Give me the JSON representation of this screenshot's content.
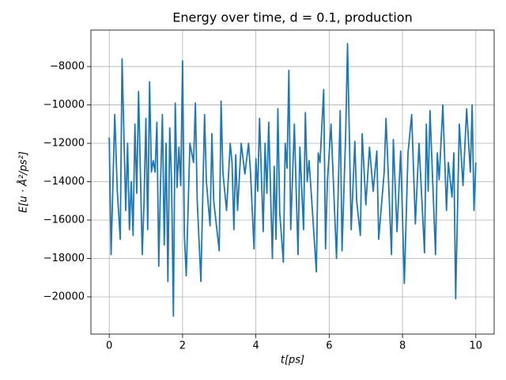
{
  "chart_data": {
    "type": "line",
    "title": "Energy over time, d = 0.1, production",
    "xlabel": "t[ps]",
    "ylabel": "E[u · Å²/ps²]",
    "x": [
      0,
      0.05,
      0.15,
      0.22,
      0.3,
      0.35,
      0.45,
      0.5,
      0.55,
      0.6,
      0.65,
      0.7,
      0.75,
      0.8,
      0.9,
      0.95,
      1.0,
      1.05,
      1.1,
      1.15,
      1.2,
      1.25,
      1.3,
      1.35,
      1.4,
      1.45,
      1.5,
      1.55,
      1.6,
      1.65,
      1.7,
      1.75,
      1.8,
      1.85,
      1.9,
      1.95,
      2.0,
      2.05,
      2.1,
      2.2,
      2.3,
      2.35,
      2.4,
      2.5,
      2.6,
      2.65,
      2.75,
      2.8,
      2.85,
      3.0,
      3.05,
      3.1,
      3.2,
      3.3,
      3.35,
      3.4,
      3.45,
      3.5,
      3.6,
      3.7,
      3.8,
      3.85,
      3.95,
      4.0,
      4.05,
      4.1,
      4.2,
      4.25,
      4.3,
      4.35,
      4.45,
      4.5,
      4.55,
      4.6,
      4.65,
      4.75,
      4.8,
      4.85,
      4.9,
      4.95,
      5.05,
      5.1,
      5.15,
      5.2,
      5.3,
      5.35,
      5.4,
      5.45,
      5.5,
      5.65,
      5.7,
      5.75,
      5.85,
      5.9,
      5.95,
      6.05,
      6.2,
      6.3,
      6.35,
      6.45,
      6.5,
      6.6,
      6.7,
      6.75,
      6.85,
      6.9,
      7.0,
      7.05,
      7.1,
      7.2,
      7.3,
      7.35,
      7.5,
      7.55,
      7.7,
      7.75,
      7.85,
      7.95,
      8.05,
      8.15,
      8.25,
      8.35,
      8.45,
      8.6,
      8.65,
      8.7,
      8.75,
      8.9,
      8.95,
      9.0,
      9.1,
      9.2,
      9.25,
      9.35,
      9.4,
      9.45,
      9.55,
      9.65,
      9.75,
      9.85,
      9.9,
      9.95,
      10.0
    ],
    "series": [
      {
        "name": "energy",
        "color": "#1f77b4",
        "values": [
          -11700,
          -17800,
          -10500,
          -14500,
          -17000,
          -7600,
          -15500,
          -12000,
          -16500,
          -14000,
          -16800,
          -11000,
          -14600,
          -9300,
          -17800,
          -15000,
          -10700,
          -16500,
          -8800,
          -13500,
          -12900,
          -13500,
          -10900,
          -18400,
          -14000,
          -10500,
          -17300,
          -12000,
          -19200,
          -11200,
          -14000,
          -21000,
          -9900,
          -14300,
          -12200,
          -14200,
          -7700,
          -16800,
          -18900,
          -12000,
          -13000,
          -9900,
          -15000,
          -19200,
          -10500,
          -14000,
          -16300,
          -11500,
          -15000,
          -17600,
          -9800,
          -13500,
          -15500,
          -12000,
          -13000,
          -16500,
          -12600,
          -15500,
          -12000,
          -13600,
          -12000,
          -13400,
          -17500,
          -12800,
          -14500,
          -10700,
          -16600,
          -12000,
          -14600,
          -10900,
          -18000,
          -13200,
          -17000,
          -10200,
          -15600,
          -18200,
          -12000,
          -13300,
          -8200,
          -16500,
          -11000,
          -14500,
          -17800,
          -12200,
          -16500,
          -10400,
          -14000,
          -12900,
          -14300,
          -18700,
          -12500,
          -13000,
          -9200,
          -17500,
          -14000,
          -11000,
          -18000,
          -10300,
          -17600,
          -11500,
          -6800,
          -16500,
          -11900,
          -15000,
          -16800,
          -11500,
          -15200,
          -13700,
          -12200,
          -14500,
          -12400,
          -17000,
          -13500,
          -10700,
          -17800,
          -11800,
          -16600,
          -12400,
          -19300,
          -12500,
          -10500,
          -16200,
          -12000,
          -17700,
          -11000,
          -14500,
          -10300,
          -17800,
          -12500,
          -13900,
          -10000,
          -15500,
          -13000,
          -14800,
          -12500,
          -20100,
          -11000,
          -14200,
          -10200,
          -13500,
          -10000,
          -15500,
          -13000
        ]
      }
    ],
    "xlim": [
      -0.5,
      10.5
    ],
    "ylim": [
      -21940,
      -6100
    ],
    "xticks": [
      0,
      2,
      4,
      6,
      8,
      10
    ],
    "yticks": [
      {
        "value": -20000,
        "label": "−20000"
      },
      {
        "value": -18000,
        "label": "−18000"
      },
      {
        "value": -16000,
        "label": "−16000"
      },
      {
        "value": -14000,
        "label": "−14000"
      },
      {
        "value": -12000,
        "label": "−12000"
      },
      {
        "value": -10000,
        "label": "−10000"
      },
      {
        "value": -8000,
        "label": "−8000"
      }
    ],
    "grid": true
  }
}
